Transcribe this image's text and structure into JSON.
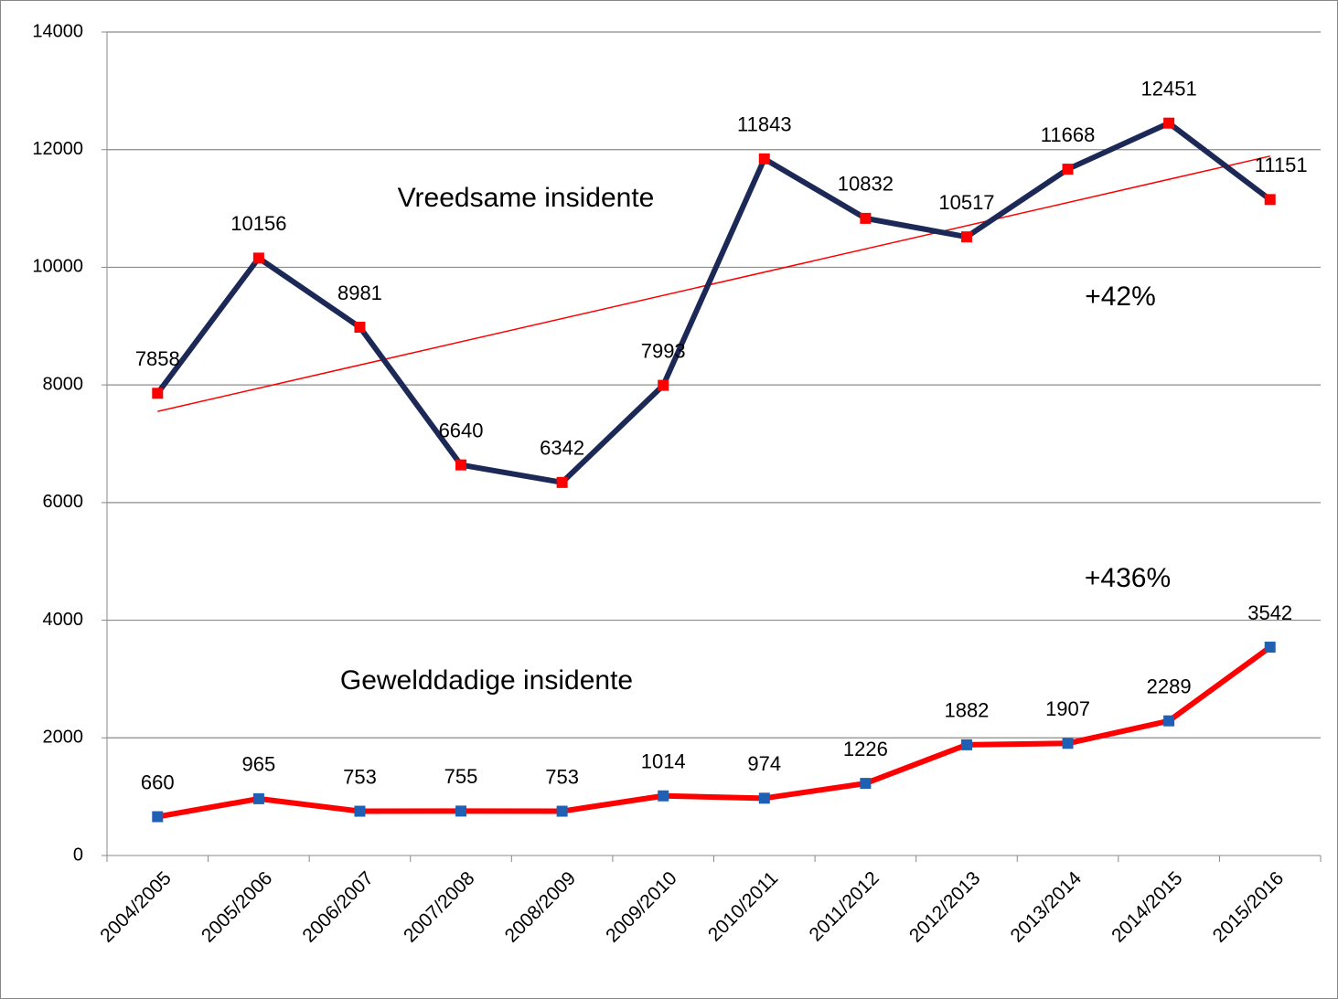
{
  "chart_data": {
    "type": "line",
    "categories": [
      "2004/2005",
      "2005/2006",
      "2006/2007",
      "2007/2008",
      "2008/2009",
      "2009/2010",
      "2010/2011",
      "2011/2012",
      "2012/2013",
      "2013/2014",
      "2014/2015",
      "2015/2016"
    ],
    "series": [
      {
        "name": "Vreedsame insidente",
        "color": "#1c2957",
        "marker_color": "#ff0000",
        "values": [
          7858,
          10156,
          8981,
          6640,
          6342,
          7993,
          11843,
          10832,
          10517,
          11668,
          12451,
          11151
        ]
      },
      {
        "name": "Gewelddadige insidente",
        "color": "#ff0000",
        "marker_color": "#1f5fb4",
        "values": [
          660,
          965,
          753,
          755,
          753,
          1014,
          974,
          1226,
          1882,
          1907,
          2289,
          3542
        ]
      }
    ],
    "trendline": {
      "color": "#ff0000",
      "values": [
        7550,
        11890
      ]
    },
    "annotations": [
      "+42%",
      "+436%"
    ],
    "ylim": [
      0,
      14000
    ],
    "yticks": [
      0,
      2000,
      4000,
      6000,
      8000,
      10000,
      12000,
      14000
    ],
    "grid": true
  }
}
